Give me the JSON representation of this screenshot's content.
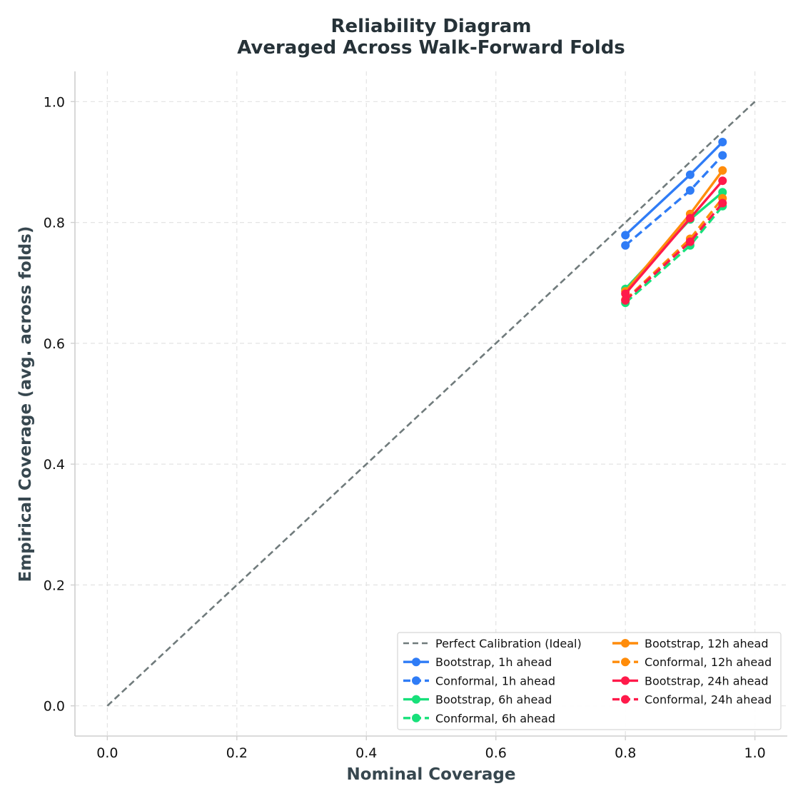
{
  "chart_data": {
    "type": "line",
    "title": "Reliability Diagram",
    "subtitle": "Averaged Across Walk-Forward Folds",
    "xlabel": "Nominal Coverage",
    "ylabel": "Empirical Coverage (avg. across folds)",
    "xlim": [
      -0.05,
      1.05
    ],
    "ylim": [
      -0.05,
      1.05
    ],
    "xticks": [
      0.0,
      0.2,
      0.4,
      0.6,
      0.8,
      1.0
    ],
    "yticks": [
      0.0,
      0.2,
      0.4,
      0.6,
      0.8,
      1.0
    ],
    "xtick_labels": [
      "0.0",
      "0.2",
      "0.4",
      "0.6",
      "0.8",
      "1.0"
    ],
    "ytick_labels": [
      "0.0",
      "0.2",
      "0.4",
      "0.6",
      "0.8",
      "1.0"
    ],
    "grid": true,
    "legend_position": "bottom-right",
    "reference_line": {
      "name": "Perfect Calibration (Ideal)",
      "x": [
        0.0,
        1.0
      ],
      "y": [
        0.0,
        1.0
      ],
      "color": "#707b7c",
      "style": "dashed"
    },
    "series": [
      {
        "name": "Bootstrap, 1h ahead",
        "method": "Bootstrap",
        "color": "#2f7cf6",
        "style": "solid",
        "x": [
          0.8,
          0.9,
          0.95
        ],
        "y": [
          0.779,
          0.879,
          0.933
        ]
      },
      {
        "name": "Conformal, 1h ahead",
        "method": "Conformal",
        "color": "#2f7cf6",
        "style": "dashed",
        "x": [
          0.8,
          0.9,
          0.95
        ],
        "y": [
          0.762,
          0.853,
          0.911
        ]
      },
      {
        "name": "Bootstrap, 6h ahead",
        "method": "Bootstrap",
        "color": "#17e07a",
        "style": "solid",
        "x": [
          0.8,
          0.9,
          0.95
        ],
        "y": [
          0.69,
          0.805,
          0.85
        ]
      },
      {
        "name": "Conformal, 6h ahead",
        "method": "Conformal",
        "color": "#17e07a",
        "style": "dashed",
        "x": [
          0.8,
          0.9,
          0.95
        ],
        "y": [
          0.667,
          0.762,
          0.827
        ]
      },
      {
        "name": "Bootstrap, 12h ahead",
        "method": "Bootstrap",
        "color": "#ff8c0a",
        "style": "solid",
        "x": [
          0.8,
          0.9,
          0.95
        ],
        "y": [
          0.686,
          0.814,
          0.886
        ]
      },
      {
        "name": "Conformal, 12h ahead",
        "method": "Conformal",
        "color": "#ff8c0a",
        "style": "dashed",
        "x": [
          0.8,
          0.9,
          0.95
        ],
        "y": [
          0.672,
          0.773,
          0.84
        ]
      },
      {
        "name": "Bootstrap, 24h ahead",
        "method": "Bootstrap",
        "color": "#ff1a4a",
        "style": "solid",
        "x": [
          0.8,
          0.9,
          0.95
        ],
        "y": [
          0.682,
          0.807,
          0.869
        ]
      },
      {
        "name": "Conformal, 24h ahead",
        "method": "Conformal",
        "color": "#ff1a4a",
        "style": "dashed",
        "x": [
          0.8,
          0.9,
          0.95
        ],
        "y": [
          0.671,
          0.768,
          0.832
        ]
      }
    ]
  }
}
